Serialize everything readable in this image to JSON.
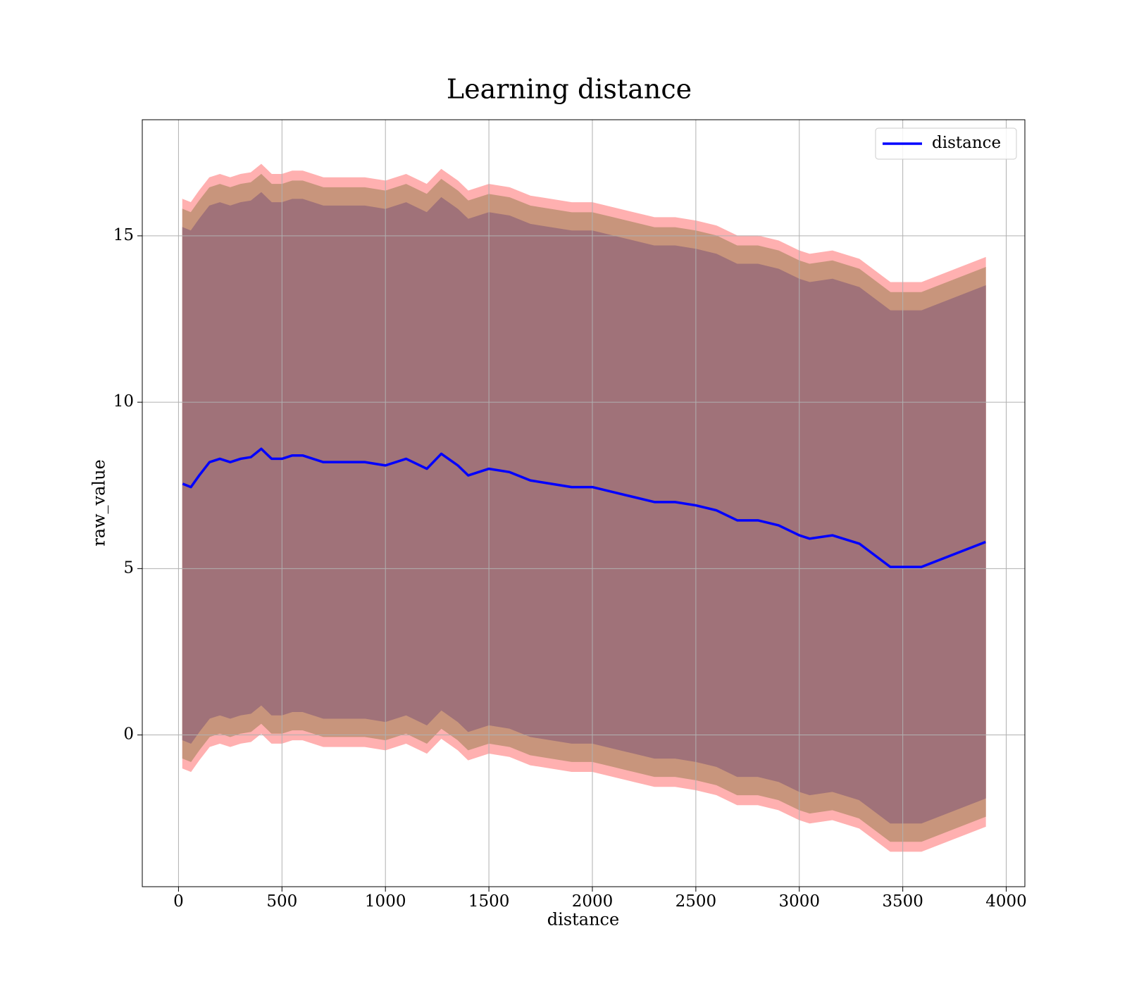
{
  "chart_data": {
    "type": "line",
    "title": "Learning distance",
    "xlabel": "distance",
    "ylabel": "raw_value",
    "x": [
      20,
      60,
      100,
      150,
      200,
      250,
      300,
      350,
      400,
      450,
      500,
      550,
      600,
      650,
      700,
      800,
      900,
      1000,
      1100,
      1200,
      1270,
      1350,
      1400,
      1500,
      1600,
      1700,
      1800,
      1900,
      2000,
      2100,
      2200,
      2300,
      2400,
      2500,
      2600,
      2700,
      2800,
      2900,
      3000,
      3050,
      3160,
      3290,
      3440,
      3590,
      3900
    ],
    "series": [
      {
        "name": "distance",
        "color": "#0000ff",
        "values": [
          7.55,
          7.45,
          7.8,
          8.2,
          8.3,
          8.2,
          8.3,
          8.35,
          8.6,
          8.3,
          8.3,
          8.4,
          8.4,
          8.3,
          8.2,
          8.2,
          8.2,
          8.1,
          8.3,
          8.0,
          8.45,
          8.1,
          7.8,
          8.0,
          7.9,
          7.65,
          7.55,
          7.45,
          7.45,
          7.3,
          7.15,
          7.0,
          7.0,
          6.9,
          6.75,
          6.45,
          6.45,
          6.3,
          6.0,
          5.9,
          6.0,
          5.75,
          5.05,
          5.05,
          5.8
        ]
      }
    ],
    "bands": [
      {
        "color": "#ffb0b0",
        "upper": [
          16.1,
          16.0,
          16.35,
          16.75,
          16.85,
          16.75,
          16.85,
          16.9,
          17.15,
          16.85,
          16.85,
          16.95,
          16.95,
          16.85,
          16.75,
          16.75,
          16.75,
          16.65,
          16.85,
          16.55,
          17.0,
          16.65,
          16.35,
          16.55,
          16.45,
          16.2,
          16.1,
          16.0,
          16.0,
          15.85,
          15.7,
          15.55,
          15.55,
          15.45,
          15.3,
          15.0,
          15.0,
          14.85,
          14.55,
          14.45,
          14.55,
          14.3,
          13.6,
          13.6,
          14.35
        ],
        "lower": [
          -1.0,
          -1.1,
          -0.75,
          -0.35,
          -0.25,
          -0.35,
          -0.25,
          -0.2,
          0.05,
          -0.25,
          -0.25,
          -0.15,
          -0.15,
          -0.25,
          -0.35,
          -0.35,
          -0.35,
          -0.45,
          -0.25,
          -0.55,
          -0.1,
          -0.45,
          -0.75,
          -0.55,
          -0.65,
          -0.9,
          -1.0,
          -1.1,
          -1.1,
          -1.25,
          -1.4,
          -1.55,
          -1.55,
          -1.65,
          -1.8,
          -2.1,
          -2.1,
          -2.25,
          -2.55,
          -2.65,
          -2.55,
          -2.8,
          -3.5,
          -3.5,
          -2.75
        ]
      },
      {
        "color": "#c8957c",
        "upper": [
          15.8,
          15.7,
          16.05,
          16.45,
          16.55,
          16.45,
          16.55,
          16.6,
          16.85,
          16.55,
          16.55,
          16.65,
          16.65,
          16.55,
          16.45,
          16.45,
          16.45,
          16.35,
          16.55,
          16.25,
          16.7,
          16.35,
          16.05,
          16.25,
          16.15,
          15.9,
          15.8,
          15.7,
          15.7,
          15.55,
          15.4,
          15.25,
          15.25,
          15.15,
          15.0,
          14.7,
          14.7,
          14.55,
          14.25,
          14.15,
          14.25,
          14.0,
          13.3,
          13.3,
          14.05
        ],
        "lower": [
          -0.7,
          -0.8,
          -0.45,
          -0.05,
          0.05,
          -0.05,
          0.05,
          0.1,
          0.35,
          0.05,
          0.05,
          0.15,
          0.15,
          0.05,
          -0.05,
          -0.05,
          -0.05,
          -0.15,
          0.05,
          -0.25,
          0.2,
          -0.15,
          -0.45,
          -0.25,
          -0.35,
          -0.6,
          -0.7,
          -0.8,
          -0.8,
          -0.95,
          -1.1,
          -1.25,
          -1.25,
          -1.35,
          -1.5,
          -1.8,
          -1.8,
          -1.95,
          -2.25,
          -2.35,
          -2.25,
          -2.5,
          -3.2,
          -3.2,
          -2.45
        ]
      },
      {
        "color": "#a07279",
        "upper": [
          15.25,
          15.15,
          15.5,
          15.9,
          16.0,
          15.9,
          16.0,
          16.05,
          16.3,
          16.0,
          16.0,
          16.1,
          16.1,
          16.0,
          15.9,
          15.9,
          15.9,
          15.8,
          16.0,
          15.7,
          16.15,
          15.8,
          15.5,
          15.7,
          15.6,
          15.35,
          15.25,
          15.15,
          15.15,
          15.0,
          14.85,
          14.7,
          14.7,
          14.6,
          14.45,
          14.15,
          14.15,
          14.0,
          13.7,
          13.6,
          13.7,
          13.45,
          12.75,
          12.75,
          13.5
        ],
        "lower": [
          -0.15,
          -0.25,
          0.1,
          0.5,
          0.6,
          0.5,
          0.6,
          0.65,
          0.9,
          0.6,
          0.6,
          0.7,
          0.7,
          0.6,
          0.5,
          0.5,
          0.5,
          0.4,
          0.6,
          0.3,
          0.75,
          0.4,
          0.1,
          0.3,
          0.2,
          -0.05,
          -0.15,
          -0.25,
          -0.25,
          -0.4,
          -0.55,
          -0.7,
          -0.7,
          -0.8,
          -0.95,
          -1.25,
          -1.25,
          -1.4,
          -1.7,
          -1.8,
          -1.7,
          -1.95,
          -2.65,
          -2.65,
          -1.9
        ]
      }
    ],
    "xlim": [
      -175,
      4090
    ],
    "ylim": [
      -4.56,
      18.49
    ],
    "xticks": [
      0,
      500,
      1000,
      1500,
      2000,
      2500,
      3000,
      3500,
      4000
    ],
    "yticks": [
      0,
      5,
      10,
      15
    ],
    "grid": true,
    "legend": "upper right"
  }
}
